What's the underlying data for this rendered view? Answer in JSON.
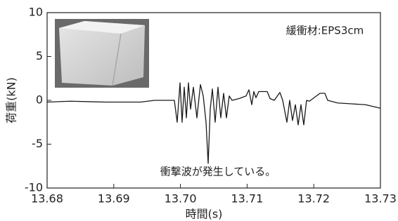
{
  "chart_data": {
    "type": "line",
    "x_label": "時間(s)",
    "y_label": "荷重(kN)",
    "annotations": [
      "緩衝材:EPS3cm",
      "衝撃波が発生している。"
    ],
    "x": [
      13.68,
      13.68348,
      13.68876,
      13.69403,
      13.69614,
      13.69909,
      13.69951,
      13.69994,
      13.70025,
      13.70057,
      13.70089,
      13.7012,
      13.70152,
      13.70194,
      13.70247,
      13.703,
      13.70342,
      13.70384,
      13.70416,
      13.70447,
      13.70479,
      13.70521,
      13.70563,
      13.70605,
      13.70648,
      13.7069,
      13.70732,
      13.70774,
      13.7088,
      13.70985,
      13.71027,
      13.7107,
      13.71101,
      13.71133,
      13.71175,
      13.71302,
      13.71344,
      13.71407,
      13.71492,
      13.71534,
      13.71597,
      13.71639,
      13.71681,
      13.71724,
      13.71766,
      13.71808,
      13.7185,
      13.71892,
      13.71935,
      13.72093,
      13.72167,
      13.72209,
      13.72357,
      13.72568,
      13.72778,
      13.73
    ],
    "series": [
      {
        "color": "#1a1a1a",
        "values": [
          -0.2,
          -0.1,
          -0.2,
          -0.2,
          0.0,
          0.0,
          -2.5,
          2.0,
          -2.5,
          1.5,
          -2.0,
          2.0,
          -1.0,
          1.5,
          -2.0,
          1.8,
          0.5,
          -2.5,
          -7.2,
          -1.0,
          1.3,
          -2.5,
          1.5,
          -2.0,
          0.8,
          -2.0,
          0.5,
          0.0,
          0.2,
          0.5,
          1.2,
          -0.5,
          1.0,
          0.3,
          1.0,
          1.0,
          0.2,
          0.0,
          0.9,
          0.0,
          -2.5,
          0.0,
          -2.3,
          -0.5,
          -2.8,
          -0.5,
          -2.8,
          0.0,
          -0.1,
          0.8,
          0.8,
          0.0,
          -0.3,
          -0.4,
          -0.5,
          -0.9
        ]
      }
    ],
    "xlim": [
      13.68,
      13.73
    ],
    "xticks": [
      {
        "value": 13.68,
        "label": "13.68"
      },
      {
        "value": 13.69,
        "label": "13.69"
      },
      {
        "value": 13.7,
        "label": "13.70"
      },
      {
        "value": 13.71,
        "label": "13.71"
      },
      {
        "value": 13.72,
        "label": "13.72"
      },
      {
        "value": 13.73,
        "label": "13.73"
      }
    ],
    "ylim": [
      -10,
      10
    ],
    "yticks": [
      10,
      5,
      0,
      -5,
      -10
    ]
  }
}
